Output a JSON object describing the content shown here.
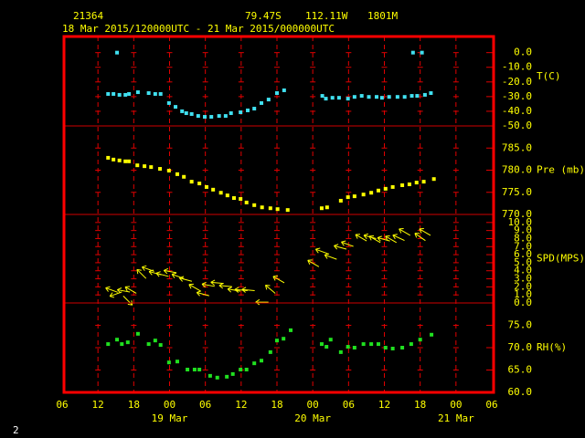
{
  "header": {
    "station": "21364",
    "latitude": "79.47S",
    "longitude": "112.11W",
    "elevation": "1801M",
    "period": "18 Mar 2015/120000UTC - 21 Mar 2015/000000UTC",
    "page": "2"
  },
  "x_axis": {
    "xlim": [
      6,
      78
    ],
    "xticks": [
      {
        "value": 6,
        "label": "06"
      },
      {
        "value": 12,
        "label": "12"
      },
      {
        "value": 18,
        "label": "18"
      },
      {
        "value": 24,
        "label": "00"
      },
      {
        "value": 30,
        "label": "06"
      },
      {
        "value": 36,
        "label": "12"
      },
      {
        "value": 42,
        "label": "18"
      },
      {
        "value": 48,
        "label": "00"
      },
      {
        "value": 54,
        "label": "06"
      },
      {
        "value": 60,
        "label": "12"
      },
      {
        "value": 66,
        "label": "18"
      },
      {
        "value": 72,
        "label": "00"
      },
      {
        "value": 78,
        "label": "06"
      }
    ],
    "date_ticks": [
      {
        "value": 24,
        "label": "19 Mar"
      },
      {
        "value": 48,
        "label": "20 Mar"
      },
      {
        "value": 72,
        "label": "21 Mar"
      }
    ]
  },
  "chart_data": [
    {
      "type": "scatter",
      "unit_label": "T(C)",
      "color": "#40e0f0",
      "ylim": [
        -50,
        11
      ],
      "yticks": [
        {
          "value": 0,
          "label": "0.0"
        },
        {
          "value": -10,
          "label": "-10.0"
        },
        {
          "value": -20,
          "label": "-20.0"
        },
        {
          "value": -30,
          "label": "-30.0"
        },
        {
          "value": -40,
          "label": "-40.0"
        },
        {
          "value": -50,
          "label": "-50.0"
        }
      ],
      "x": [
        15.2,
        13.7,
        14.6,
        15.6,
        16.6,
        17.2,
        18.7,
        20.5,
        21.6,
        22.5,
        23.9,
        25,
        26.1,
        26.8,
        27.7,
        28.8,
        29.9,
        31,
        32.3,
        33.4,
        34.3,
        35.9,
        37.1,
        38.2,
        39.4,
        40.6,
        42,
        43.2,
        49.6,
        50.2,
        51.3,
        52.4,
        53.9,
        55,
        56.2,
        57.4,
        58.7,
        59.6,
        60.8,
        62.2,
        63.4,
        64.6,
        65.5,
        66.8,
        67.8,
        64.8,
        66.3
      ],
      "values": [
        0,
        -28.2,
        -28.2,
        -28.8,
        -28.8,
        -28.2,
        -27,
        -27.6,
        -28.2,
        -28.2,
        -34.4,
        -37,
        -40,
        -41.3,
        -41.9,
        -43.2,
        -43.8,
        -43.8,
        -43.2,
        -43.2,
        -41.3,
        -40.7,
        -39.4,
        -38.2,
        -34.4,
        -32,
        -27.6,
        -25.7,
        -29.5,
        -31.4,
        -30.8,
        -30.8,
        -31.4,
        -30.2,
        -29.5,
        -30.2,
        -30.2,
        -30.8,
        -30.2,
        -30.2,
        -30.2,
        -29.5,
        -29.5,
        -28.8,
        -27.6,
        0,
        0
      ]
    },
    {
      "type": "scatter",
      "unit_label": "Pre (mb)",
      "color": "#ffff00",
      "ylim": [
        770,
        790
      ],
      "yticks": [
        {
          "value": 785,
          "label": "785.0"
        },
        {
          "value": 780,
          "label": "780.0"
        },
        {
          "value": 775,
          "label": "775.0"
        },
        {
          "value": 770,
          "label": "770.0"
        }
      ],
      "x": [
        13.7,
        14.6,
        15.6,
        16.6,
        17.2,
        18.6,
        19.8,
        20.9,
        22.4,
        23.9,
        25.3,
        26.4,
        27.7,
        29,
        30.2,
        31.3,
        32.6,
        33.7,
        34.8,
        35.9,
        36.9,
        38.2,
        39.5,
        40.9,
        42.1,
        43.8,
        49.5,
        50.4,
        52.7,
        53.9,
        55,
        56.5,
        57.8,
        59,
        60.2,
        61.4,
        63,
        64.2,
        65.4,
        66.6,
        68.3
      ],
      "values": [
        782.8,
        782.4,
        782.2,
        782,
        782,
        781.1,
        780.9,
        780.7,
        780.3,
        779.9,
        779.1,
        778.5,
        777.4,
        777,
        776.2,
        775.6,
        774.9,
        774.3,
        773.7,
        773.5,
        772.7,
        772.1,
        771.6,
        771.4,
        771.2,
        771,
        771.4,
        771.6,
        773.1,
        773.9,
        774.1,
        774.5,
        774.9,
        775.4,
        775.8,
        776.2,
        776.6,
        776.8,
        777.2,
        777.4,
        778
      ]
    },
    {
      "type": "vector",
      "unit_label": "SPD(MPS)",
      "color": "#ffff00",
      "ylim": [
        0,
        11
      ],
      "yticks": [
        {
          "value": 10,
          "label": "10.0"
        },
        {
          "value": 9,
          "label": "9.0"
        },
        {
          "value": 8,
          "label": "8.0"
        },
        {
          "value": 7,
          "label": "7.0"
        },
        {
          "value": 6,
          "label": "6.0"
        },
        {
          "value": 5,
          "label": "5.0"
        },
        {
          "value": 4,
          "label": "4.0"
        },
        {
          "value": 3,
          "label": "3.0"
        },
        {
          "value": 2,
          "label": "2.0"
        },
        {
          "value": 1,
          "label": "1.0"
        },
        {
          "value": 0,
          "label": "0.0"
        }
      ],
      "x": [
        14.3,
        15,
        16.3,
        17.5,
        17,
        19.3,
        20.4,
        21.6,
        22.8,
        24.1,
        25.4,
        26.7,
        28.2,
        29.6,
        30.5,
        32,
        33.4,
        34.8,
        36,
        37.2,
        39.5,
        40.9,
        42.3,
        48.1,
        49.5,
        51,
        52.6,
        53.8,
        56.1,
        57.6,
        58.4,
        59.9,
        61.1,
        62.4,
        63.4,
        66,
        66.8
      ],
      "values": [
        1.6,
        1.1,
        1.5,
        1.6,
        0.3,
        3.6,
        4.2,
        3.7,
        3.5,
        3.9,
        3.3,
        2.9,
        1.9,
        1.1,
        2.2,
        2.5,
        2.1,
        1.6,
        1.6,
        1.6,
        0.1,
        1.7,
        2.9,
        4.9,
        6.4,
        5.7,
        6.9,
        7.3,
        8.1,
        8.2,
        7.9,
        7.9,
        7.9,
        8.1,
        8.8,
        8.2,
        8.8
      ],
      "directions": [
        160,
        200,
        170,
        150,
        315,
        135,
        160,
        165,
        165,
        170,
        160,
        165,
        150,
        165,
        170,
        175,
        175,
        170,
        175,
        175,
        180,
        140,
        150,
        150,
        160,
        160,
        165,
        160,
        150,
        165,
        150,
        165,
        150,
        155,
        150,
        145,
        150
      ]
    },
    {
      "type": "scatter",
      "unit_label": "RH(%)",
      "color": "#20e020",
      "ylim": [
        60,
        80
      ],
      "yticks": [
        {
          "value": 75,
          "label": "75.0"
        },
        {
          "value": 70,
          "label": "70.0"
        },
        {
          "value": 65,
          "label": "65.0"
        },
        {
          "value": 60,
          "label": "60.0"
        }
      ],
      "x": [
        13.7,
        15.2,
        16,
        17,
        18.7,
        20.5,
        21.6,
        22.5,
        23.9,
        25.3,
        27,
        28.2,
        29,
        30.8,
        32,
        33.6,
        34.6,
        35.9,
        36.9,
        38.2,
        39.4,
        40.9,
        42,
        43.1,
        44.3,
        49.5,
        50.3,
        51,
        52.7,
        53.9,
        55,
        56.5,
        57.8,
        59,
        60.2,
        61.4,
        63,
        64.5,
        66,
        67.9
      ],
      "values": [
        70.8,
        71.8,
        70.8,
        71.2,
        73.1,
        70.8,
        71.6,
        70.6,
        66.7,
        66.9,
        65.1,
        65.1,
        65.1,
        63.7,
        63.3,
        63.5,
        64.1,
        65.1,
        65.1,
        66.5,
        67.1,
        69,
        71.6,
        72,
        73.9,
        70.8,
        70.2,
        71.8,
        69,
        70.2,
        70,
        70.8,
        70.8,
        70.8,
        70,
        69.8,
        70,
        70.8,
        71.8,
        72.9
      ]
    }
  ]
}
